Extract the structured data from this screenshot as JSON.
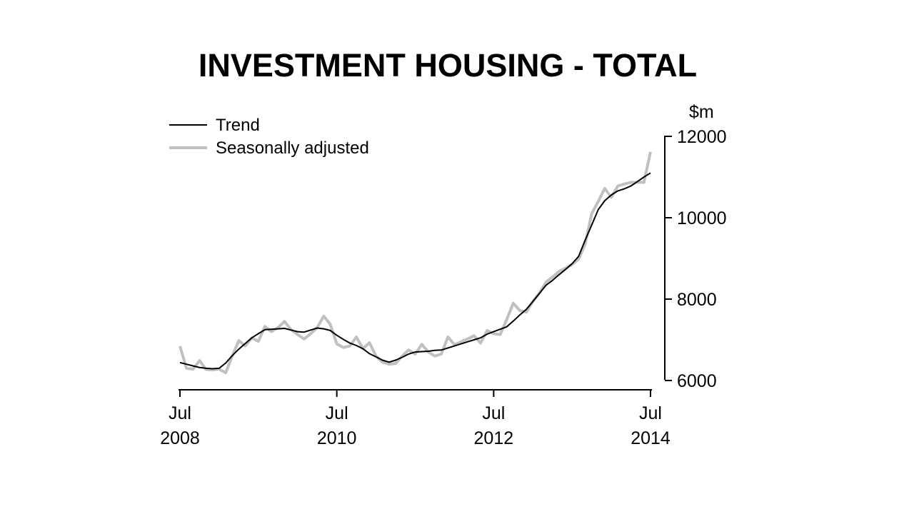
{
  "chart_data": {
    "type": "line",
    "title": "INVESTMENT HOUSING - TOTAL",
    "ylabel": "$m",
    "ylim": [
      5750,
      12000
    ],
    "yticks": [
      6000,
      8000,
      10000,
      12000
    ],
    "ytick_labels": [
      "6000",
      "8000",
      "10000",
      "12000"
    ],
    "y_axis_position": "right",
    "x_start": "2008-07",
    "x_end": "2014-07",
    "x_frequency": "monthly",
    "xticks": [
      {
        "month": "Jul",
        "year": "2008"
      },
      {
        "month": "Jul",
        "year": "2010"
      },
      {
        "month": "Jul",
        "year": "2012"
      },
      {
        "month": "Jul",
        "year": "2014"
      }
    ],
    "grid": false,
    "legend": "top-left",
    "series": [
      {
        "name": "Trend",
        "color": "#000000",
        "values": [
          6440,
          6400,
          6360,
          6320,
          6300,
          6290,
          6300,
          6430,
          6610,
          6770,
          6910,
          7050,
          7150,
          7250,
          7260,
          7270,
          7280,
          7240,
          7200,
          7190,
          7240,
          7290,
          7270,
          7230,
          7110,
          7010,
          6920,
          6860,
          6780,
          6660,
          6580,
          6500,
          6450,
          6500,
          6570,
          6650,
          6700,
          6710,
          6720,
          6740,
          6750,
          6800,
          6850,
          6900,
          6950,
          7000,
          7050,
          7140,
          7200,
          7260,
          7320,
          7460,
          7610,
          7750,
          7940,
          8140,
          8340,
          8460,
          8600,
          8730,
          8870,
          9050,
          9450,
          9820,
          10200,
          10420,
          10560,
          10660,
          10710,
          10780,
          10890,
          11000,
          11100
        ]
      },
      {
        "name": "Seasonally adjusted",
        "color": "#c0c0c0",
        "values": [
          6840,
          6300,
          6280,
          6490,
          6270,
          6260,
          6280,
          6190,
          6600,
          6980,
          6850,
          7050,
          6960,
          7330,
          7200,
          7300,
          7450,
          7250,
          7130,
          7020,
          7150,
          7300,
          7580,
          7380,
          6900,
          6810,
          6850,
          7070,
          6780,
          6930,
          6600,
          6450,
          6400,
          6420,
          6600,
          6750,
          6650,
          6890,
          6700,
          6600,
          6650,
          7070,
          6880,
          6950,
          7020,
          7100,
          6920,
          7230,
          7150,
          7130,
          7500,
          7900,
          7720,
          7680,
          7950,
          8150,
          8420,
          8540,
          8680,
          8760,
          8850,
          8980,
          9350,
          10100,
          10400,
          10720,
          10500,
          10780,
          10830,
          10870,
          10870,
          10870,
          11620
        ]
      }
    ]
  }
}
